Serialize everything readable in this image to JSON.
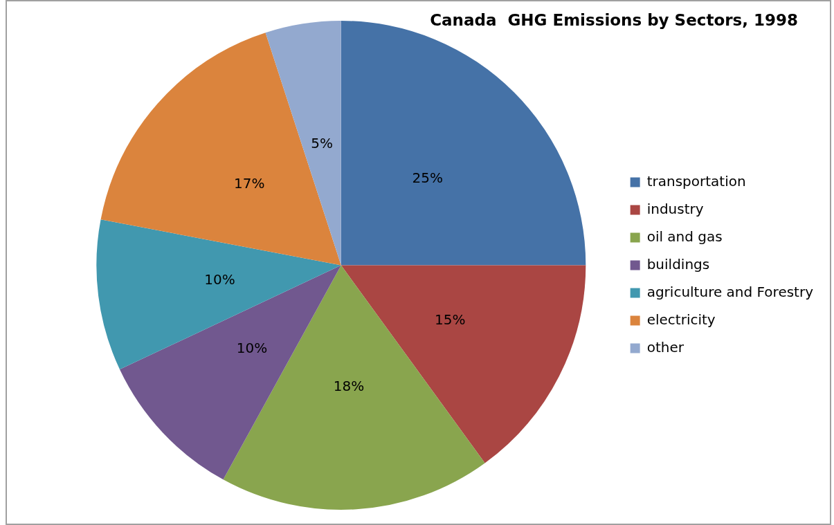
{
  "chart_data": {
    "type": "pie",
    "title": "Canada  GHG Emissions by Sectors, 1998",
    "categories": [
      "transportation",
      "industry",
      "oil and gas",
      "buildings",
      "agriculture and Forestry",
      "electricity",
      "other"
    ],
    "values": [
      25,
      15,
      18,
      10,
      10,
      17,
      5
    ],
    "value_labels": [
      "25%",
      "15%",
      "18%",
      "10%",
      "10%",
      "17%",
      "5%"
    ],
    "colors": [
      "#4572a7",
      "#aa4643",
      "#89a54e",
      "#71588f",
      "#4198af",
      "#db843d",
      "#93a9cf"
    ],
    "legend": "right"
  }
}
